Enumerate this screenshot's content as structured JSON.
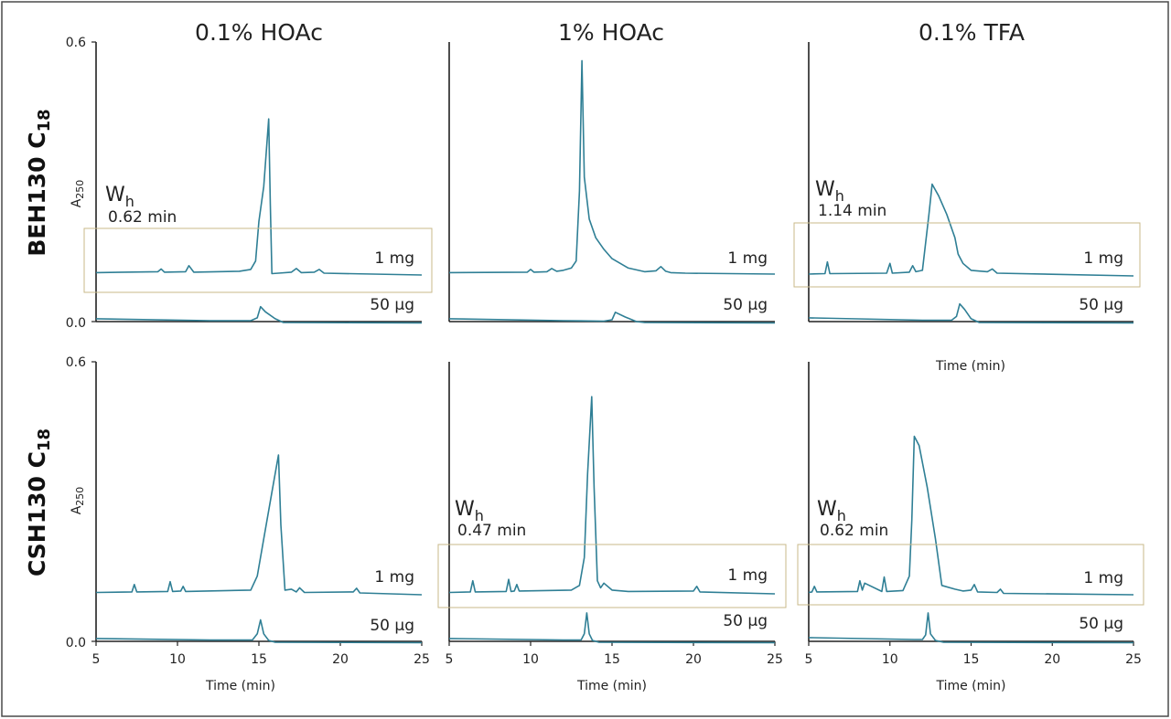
{
  "row_labels": [
    {
      "main": "BEH130 C",
      "sub": "18"
    },
    {
      "main": "CSH130 C",
      "sub": "18"
    }
  ],
  "column_titles": [
    "0.1% HOAc",
    "1% HOAc",
    "0.1% TFA"
  ],
  "y_axis_label": {
    "main": "A",
    "sub": "250"
  },
  "y_tick_labels": [
    "0.6",
    "0.0"
  ],
  "x_axis_label": "Time (min)",
  "x_tick_labels": [
    "5",
    "10",
    "15",
    "20",
    "25"
  ],
  "stray_axis_label": "Time (min)",
  "loads": [
    "1 mg",
    "50 µg"
  ],
  "chart_data": {
    "type": "line",
    "xlim": [
      5,
      25
    ],
    "ylim": [
      0,
      0.6
    ],
    "ylabel": "A250",
    "xlabel": "Time (min)",
    "panels": [
      {
        "row": "BEH130 C18",
        "column": "0.1% HOAc",
        "wh": {
          "sym": "W",
          "sub": "h",
          "value": "0.62 min"
        },
        "series": [
          {
            "name": "1 mg",
            "x": [
              5,
              8.8,
              9.0,
              9.2,
              10.5,
              10.7,
              11.0,
              13.8,
              14.5,
              14.8,
              15.0,
              15.3,
              15.6,
              15.7,
              15.8,
              16.2,
              17.0,
              17.3,
              17.6,
              18.4,
              18.7,
              19.0,
              25
            ],
            "y": [
              0.105,
              0.107,
              0.113,
              0.106,
              0.107,
              0.12,
              0.106,
              0.108,
              0.112,
              0.13,
              0.215,
              0.29,
              0.435,
              0.25,
              0.103,
              0.104,
              0.106,
              0.114,
              0.105,
              0.106,
              0.112,
              0.104,
              0.1
            ]
          },
          {
            "name": "50 µg",
            "x": [
              5,
              12.0,
              14.5,
              14.9,
              15.1,
              15.4,
              16.0,
              16.5,
              25
            ],
            "y": [
              0.01,
              0.006,
              0.006,
              0.012,
              0.036,
              0.025,
              0.01,
              0.002,
              0.001
            ]
          }
        ]
      },
      {
        "row": "BEH130 C18",
        "column": "1% HOAc",
        "series": [
          {
            "name": "1 mg",
            "x": [
              5,
              9.8,
              10.0,
              10.2,
              11.0,
              11.3,
              11.6,
              12.0,
              12.5,
              12.8,
              13.0,
              13.15,
              13.3,
              13.6,
              14.0,
              14.5,
              15.0,
              16.0,
              17.0,
              17.7,
              18.0,
              18.3,
              18.6,
              19.5,
              25
            ],
            "y": [
              0.105,
              0.106,
              0.112,
              0.106,
              0.107,
              0.114,
              0.108,
              0.11,
              0.115,
              0.13,
              0.28,
              0.56,
              0.31,
              0.22,
              0.18,
              0.155,
              0.135,
              0.115,
              0.107,
              0.109,
              0.118,
              0.108,
              0.105,
              0.104,
              0.102
            ]
          },
          {
            "name": "50 µg",
            "x": [
              5,
              12.0,
              14.5,
              15.0,
              15.2,
              15.8,
              16.5,
              17.0,
              25
            ],
            "y": [
              0.01,
              0.006,
              0.005,
              0.008,
              0.024,
              0.014,
              0.004,
              0.002,
              0.001
            ]
          }
        ]
      },
      {
        "row": "BEH130 C18",
        "column": "0.1% TFA",
        "wh": {
          "sym": "W",
          "sub": "h",
          "value": "1.14 min"
        },
        "series": [
          {
            "name": "1 mg",
            "x": [
              5,
              6.0,
              6.15,
              6.3,
              9.8,
              10.0,
              10.15,
              11.2,
              11.4,
              11.6,
              12.0,
              12.4,
              12.6,
              13.0,
              13.5,
              14.0,
              14.2,
              14.5,
              15.0,
              16.0,
              16.3,
              16.6,
              25
            ],
            "y": [
              0.102,
              0.103,
              0.128,
              0.103,
              0.104,
              0.125,
              0.104,
              0.106,
              0.12,
              0.107,
              0.11,
              0.23,
              0.295,
              0.27,
              0.23,
              0.18,
              0.145,
              0.125,
              0.11,
              0.107,
              0.113,
              0.104,
              0.098
            ]
          },
          {
            "name": "50 µg",
            "x": [
              5,
              12.0,
              13.8,
              14.1,
              14.3,
              14.6,
              15.0,
              15.5,
              25
            ],
            "y": [
              0.012,
              0.007,
              0.007,
              0.015,
              0.042,
              0.03,
              0.01,
              0.002,
              0.001
            ]
          }
        ]
      },
      {
        "row": "CSH130 C18",
        "column": "0.1% HOAc",
        "series": [
          {
            "name": "1 mg",
            "x": [
              5,
              7.2,
              7.35,
              7.5,
              9.4,
              9.55,
              9.7,
              10.2,
              10.35,
              10.5,
              14.5,
              14.9,
              15.3,
              15.8,
              16.2,
              16.35,
              16.6,
              17.0,
              17.3,
              17.5,
              17.8,
              20.8,
              21.0,
              21.2,
              25
            ],
            "y": [
              0.105,
              0.106,
              0.122,
              0.106,
              0.107,
              0.128,
              0.107,
              0.108,
              0.118,
              0.107,
              0.11,
              0.14,
              0.22,
              0.32,
              0.4,
              0.25,
              0.11,
              0.112,
              0.106,
              0.115,
              0.105,
              0.106,
              0.114,
              0.104,
              0.1
            ]
          },
          {
            "name": "50 µg",
            "x": [
              5,
              12.0,
              14.6,
              14.9,
              15.1,
              15.3,
              15.6,
              16.0,
              25
            ],
            "y": [
              0.01,
              0.007,
              0.007,
              0.02,
              0.05,
              0.02,
              0.006,
              0.002,
              0.001
            ]
          }
        ]
      },
      {
        "row": "CSH130 C18",
        "column": "1% HOAc",
        "wh": {
          "sym": "W",
          "sub": "h",
          "value": "0.47 min"
        },
        "series": [
          {
            "name": "1 mg",
            "x": [
              5,
              6.3,
              6.45,
              6.6,
              8.5,
              8.65,
              8.8,
              9.0,
              9.15,
              9.3,
              12.5,
              13.0,
              13.3,
              13.5,
              13.75,
              13.9,
              14.1,
              14.3,
              14.5,
              15.0,
              16.0,
              20.0,
              20.2,
              20.4,
              25
            ],
            "y": [
              0.105,
              0.106,
              0.13,
              0.106,
              0.107,
              0.133,
              0.107,
              0.108,
              0.122,
              0.108,
              0.11,
              0.12,
              0.18,
              0.36,
              0.525,
              0.33,
              0.13,
              0.115,
              0.125,
              0.11,
              0.107,
              0.108,
              0.118,
              0.106,
              0.102
            ]
          },
          {
            "name": "50 µg",
            "x": [
              5,
              12.0,
              13.1,
              13.3,
              13.45,
              13.6,
              13.8,
              14.2,
              25
            ],
            "y": [
              0.01,
              0.007,
              0.007,
              0.02,
              0.065,
              0.02,
              0.006,
              0.002,
              0.001
            ]
          }
        ]
      },
      {
        "row": "CSH130 C18",
        "column": "0.1% TFA",
        "wh": {
          "sym": "W",
          "sub": "h",
          "value": "0.62 min"
        },
        "series": [
          {
            "name": "1 mg",
            "x": [
              5,
              5.2,
              5.35,
              5.5,
              8.0,
              8.15,
              8.3,
              8.45,
              9.5,
              9.65,
              9.8,
              10.8,
              11.2,
              11.35,
              11.5,
              11.8,
              12.3,
              12.8,
              13.2,
              14.0,
              14.5,
              15.0,
              15.2,
              15.4,
              16.6,
              16.8,
              17.0,
              25
            ],
            "y": [
              0.105,
              0.106,
              0.118,
              0.106,
              0.107,
              0.13,
              0.11,
              0.125,
              0.107,
              0.138,
              0.107,
              0.109,
              0.14,
              0.26,
              0.44,
              0.42,
              0.33,
              0.22,
              0.12,
              0.112,
              0.108,
              0.11,
              0.122,
              0.106,
              0.105,
              0.112,
              0.103,
              0.1
            ]
          },
          {
            "name": "50 µg",
            "x": [
              5,
              11.5,
              12.0,
              12.2,
              12.35,
              12.5,
              12.8,
              13.3,
              25
            ],
            "y": [
              0.012,
              0.008,
              0.008,
              0.018,
              0.065,
              0.02,
              0.006,
              0.002,
              0.001
            ]
          }
        ]
      }
    ]
  }
}
